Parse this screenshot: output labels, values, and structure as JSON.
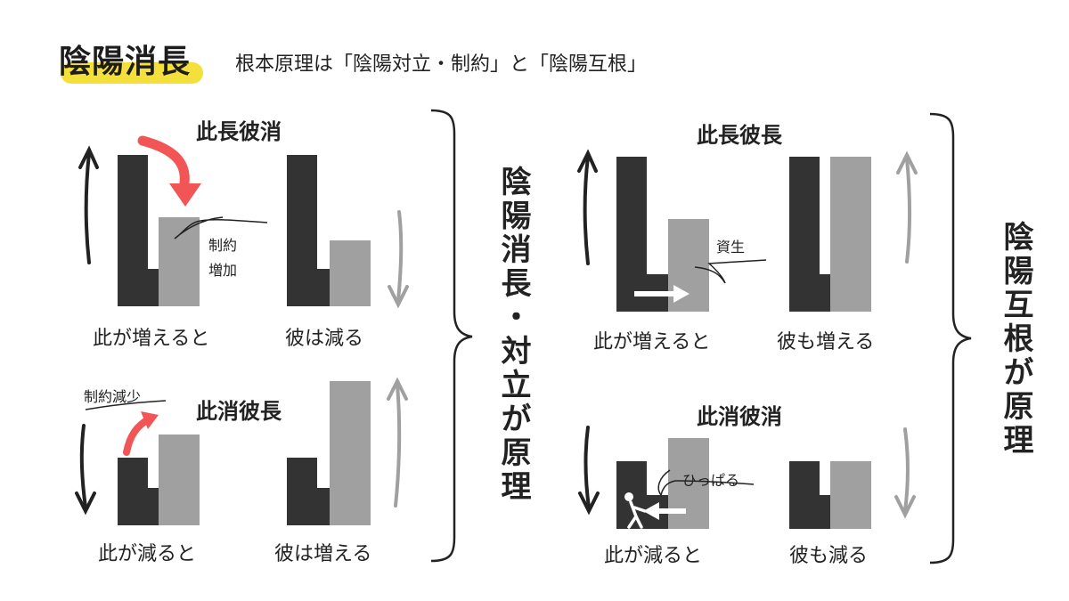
{
  "header": {
    "title": "陰陽消長",
    "subtitle": "根本原理は「陰陽対立・制約」と「陰陽互根」"
  },
  "colors": {
    "dark": "#333333",
    "light": "#a0a0a0",
    "accent": "#f25555",
    "highlight": "#f4e03a"
  },
  "left_group": {
    "label": "陰陽消長・対立が原理",
    "panel1": {
      "heading": "此長彼消",
      "caption_left": "此が増えると",
      "caption_right": "彼は減る",
      "note": "制約\n増加"
    },
    "panel2": {
      "heading": "此消彼長",
      "caption_left": "此が減ると",
      "caption_right": "彼は増える",
      "note": "制約減少"
    }
  },
  "right_group": {
    "label": "陰陽互根が原理",
    "panel3": {
      "heading": "此長彼長",
      "caption_left": "此が増えると",
      "caption_right": "彼も増える",
      "note": "資生"
    },
    "panel4": {
      "heading": "此消彼消",
      "caption_left": "此が減ると",
      "caption_right": "彼も減る",
      "note": "ひっぱる"
    }
  }
}
